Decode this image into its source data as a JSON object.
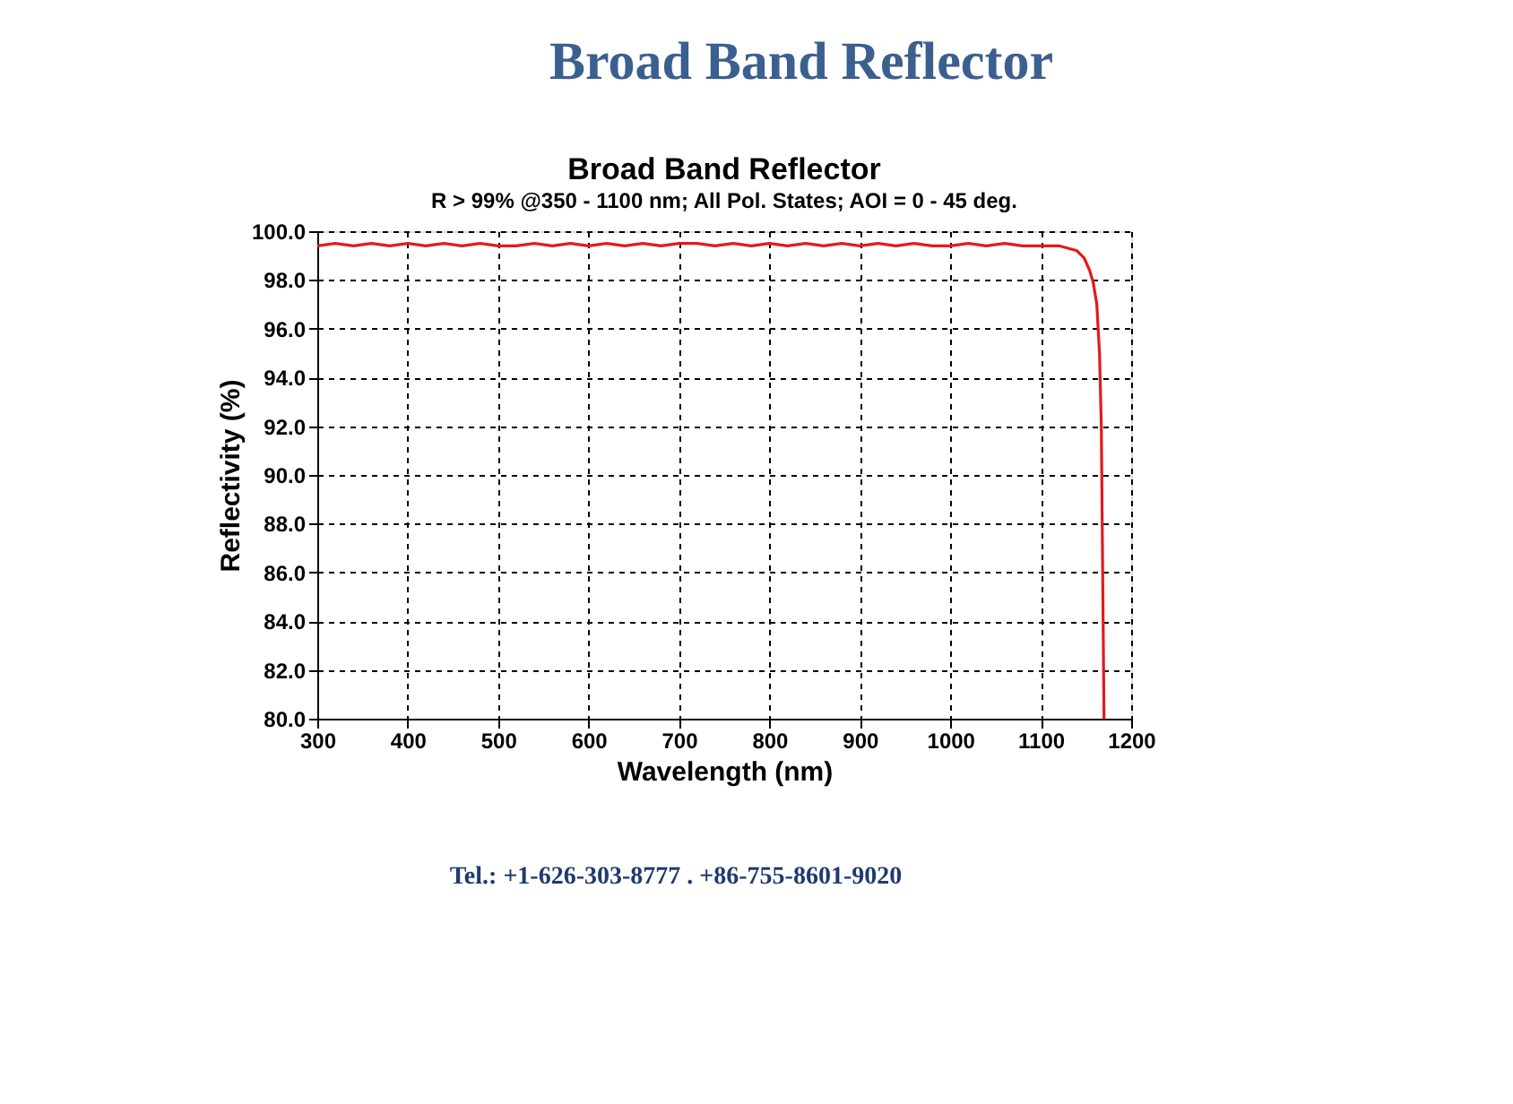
{
  "chart_data": {
    "type": "line",
    "title": "Broad Band Reflector",
    "subtitle": "R > 99% @350 - 1100 nm; All Pol. States; AOI = 0 - 45 deg.",
    "xlabel": "Wavelength (nm)",
    "ylabel": "Reflectivity (%)",
    "annotations": [
      "Broad Band Reflector",
      "Tel.: +1-626-303-8777 . +86-755-8601-9020"
    ],
    "x": [
      300,
      320,
      340,
      360,
      380,
      400,
      420,
      440,
      460,
      480,
      500,
      520,
      540,
      560,
      580,
      600,
      620,
      640,
      660,
      680,
      700,
      720,
      740,
      760,
      780,
      800,
      820,
      840,
      860,
      880,
      900,
      920,
      940,
      960,
      980,
      1000,
      1020,
      1040,
      1060,
      1080,
      1100,
      1120,
      1130,
      1140,
      1148,
      1154,
      1158,
      1162,
      1165,
      1167,
      1168,
      1169,
      1170
    ],
    "series": [
      {
        "color": "#e31a1c",
        "values": [
          99.4,
          99.5,
          99.4,
          99.5,
          99.4,
          99.5,
          99.4,
          99.5,
          99.4,
          99.5,
          99.4,
          99.4,
          99.5,
          99.4,
          99.5,
          99.4,
          99.5,
          99.4,
          99.5,
          99.4,
          99.5,
          99.5,
          99.4,
          99.5,
          99.4,
          99.5,
          99.4,
          99.5,
          99.4,
          99.5,
          99.4,
          99.5,
          99.4,
          99.5,
          99.4,
          99.4,
          99.5,
          99.4,
          99.5,
          99.4,
          99.4,
          99.4,
          99.3,
          99.2,
          98.9,
          98.4,
          97.9,
          97.0,
          95.0,
          92.0,
          88.0,
          84.0,
          80.0
        ]
      }
    ],
    "xlim": [
      300,
      1200
    ],
    "ylim": [
      80,
      100
    ],
    "xticks": [
      300,
      400,
      500,
      600,
      700,
      800,
      900,
      1000,
      1100,
      1200
    ],
    "yticks": [
      {
        "value": 80,
        "label": "80.0"
      },
      {
        "value": 82,
        "label": "82.0"
      },
      {
        "value": 84,
        "label": "84.0"
      },
      {
        "value": 86,
        "label": "86.0"
      },
      {
        "value": 88,
        "label": "88.0"
      },
      {
        "value": 90,
        "label": "90.0"
      },
      {
        "value": 92,
        "label": "92.0"
      },
      {
        "value": 94,
        "label": "94.0"
      },
      {
        "value": 96,
        "label": "96.0"
      },
      {
        "value": 98,
        "label": "98.0"
      },
      {
        "value": 100,
        "label": "100.0"
      }
    ],
    "grid": true,
    "line_style": "solid",
    "marker": "none"
  }
}
